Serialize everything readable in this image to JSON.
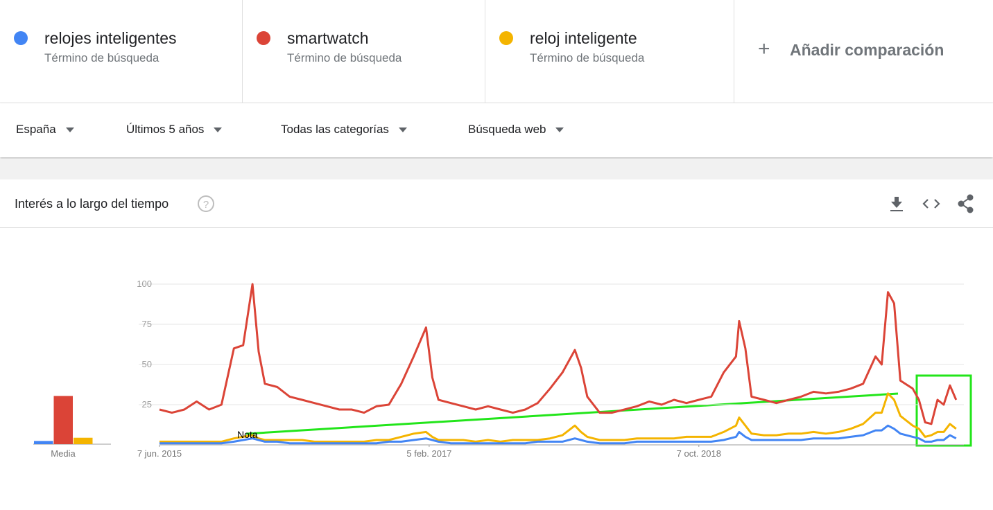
{
  "header": {
    "term_subtitles": [
      "Término de búsqueda",
      "Término de búsqueda",
      "Término de búsqueda"
    ],
    "add_comparison": "Añadir comparación"
  },
  "filters": [
    "España",
    "Últimos 5 años",
    "Todas las categorías",
    "Búsqueda web"
  ],
  "panel_title": "Interés a lo largo del tiempo",
  "chart_data": {
    "type": "line",
    "average_label": "Media",
    "annotation": "Nota",
    "x": [
      0,
      4,
      8,
      12,
      16,
      20,
      24,
      27,
      30,
      32,
      34,
      38,
      42,
      46,
      50,
      54,
      58,
      62,
      66,
      70,
      74,
      78,
      82,
      86,
      88,
      90,
      94,
      98,
      102,
      106,
      110,
      114,
      118,
      122,
      126,
      130,
      134,
      136,
      138,
      142,
      146,
      150,
      154,
      158,
      162,
      166,
      170,
      174,
      178,
      182,
      186,
      187,
      189,
      191,
      195,
      199,
      203,
      207,
      211,
      215,
      219,
      223,
      227,
      231,
      233,
      235,
      237,
      239,
      243,
      245,
      247,
      249,
      251,
      253,
      255,
      257
    ],
    "xlim": [
      0,
      259.5
    ],
    "xticks": [
      {
        "value": 0,
        "label": "7 jun. 2015"
      },
      {
        "value": 87,
        "label": "5 feb. 2017"
      },
      {
        "value": 174,
        "label": "7 oct. 2018"
      }
    ],
    "ylim": [
      0,
      100
    ],
    "yticks": [
      25,
      50,
      75,
      100
    ],
    "grid": true,
    "series": [
      {
        "name": "relojes inteligentes",
        "color": "#4285f4",
        "average": 2,
        "values": [
          1,
          1,
          1,
          1,
          1,
          1,
          2,
          3,
          4,
          3,
          2,
          2,
          1,
          1,
          1,
          1,
          1,
          1,
          1,
          1,
          2,
          2,
          3,
          4,
          3,
          2,
          1,
          1,
          1,
          1,
          1,
          1,
          1,
          2,
          2,
          2,
          4,
          3,
          2,
          1,
          1,
          1,
          2,
          2,
          2,
          2,
          2,
          2,
          2,
          3,
          5,
          8,
          5,
          3,
          3,
          3,
          3,
          3,
          4,
          4,
          4,
          5,
          6,
          9,
          9,
          12,
          10,
          7,
          5,
          4,
          2,
          2,
          3,
          3,
          6,
          4
        ]
      },
      {
        "name": "smartwatch",
        "color": "#db4437",
        "average": 30,
        "values": [
          22,
          20,
          22,
          27,
          22,
          25,
          60,
          62,
          100,
          58,
          38,
          36,
          30,
          28,
          26,
          24,
          22,
          22,
          20,
          24,
          25,
          38,
          55,
          73,
          42,
          28,
          26,
          24,
          22,
          24,
          22,
          20,
          22,
          26,
          35,
          45,
          59,
          48,
          30,
          20,
          20,
          22,
          24,
          27,
          25,
          28,
          26,
          28,
          30,
          45,
          55,
          77,
          60,
          30,
          28,
          26,
          28,
          30,
          33,
          32,
          33,
          35,
          38,
          55,
          50,
          95,
          88,
          40,
          35,
          28,
          14,
          13,
          28,
          25,
          37,
          28
        ]
      },
      {
        "name": "reloj inteligente",
        "color": "#f4b400",
        "average": 4,
        "values": [
          2,
          2,
          2,
          2,
          2,
          2,
          4,
          5,
          6,
          4,
          3,
          3,
          3,
          3,
          2,
          2,
          2,
          2,
          2,
          3,
          3,
          5,
          7,
          8,
          5,
          3,
          3,
          3,
          2,
          3,
          2,
          3,
          3,
          3,
          4,
          6,
          12,
          8,
          5,
          3,
          3,
          3,
          4,
          4,
          4,
          4,
          5,
          5,
          5,
          8,
          12,
          17,
          12,
          7,
          6,
          6,
          7,
          7,
          8,
          7,
          8,
          10,
          13,
          20,
          20,
          32,
          28,
          18,
          12,
          10,
          5,
          6,
          8,
          8,
          13,
          10
        ]
      }
    ]
  }
}
